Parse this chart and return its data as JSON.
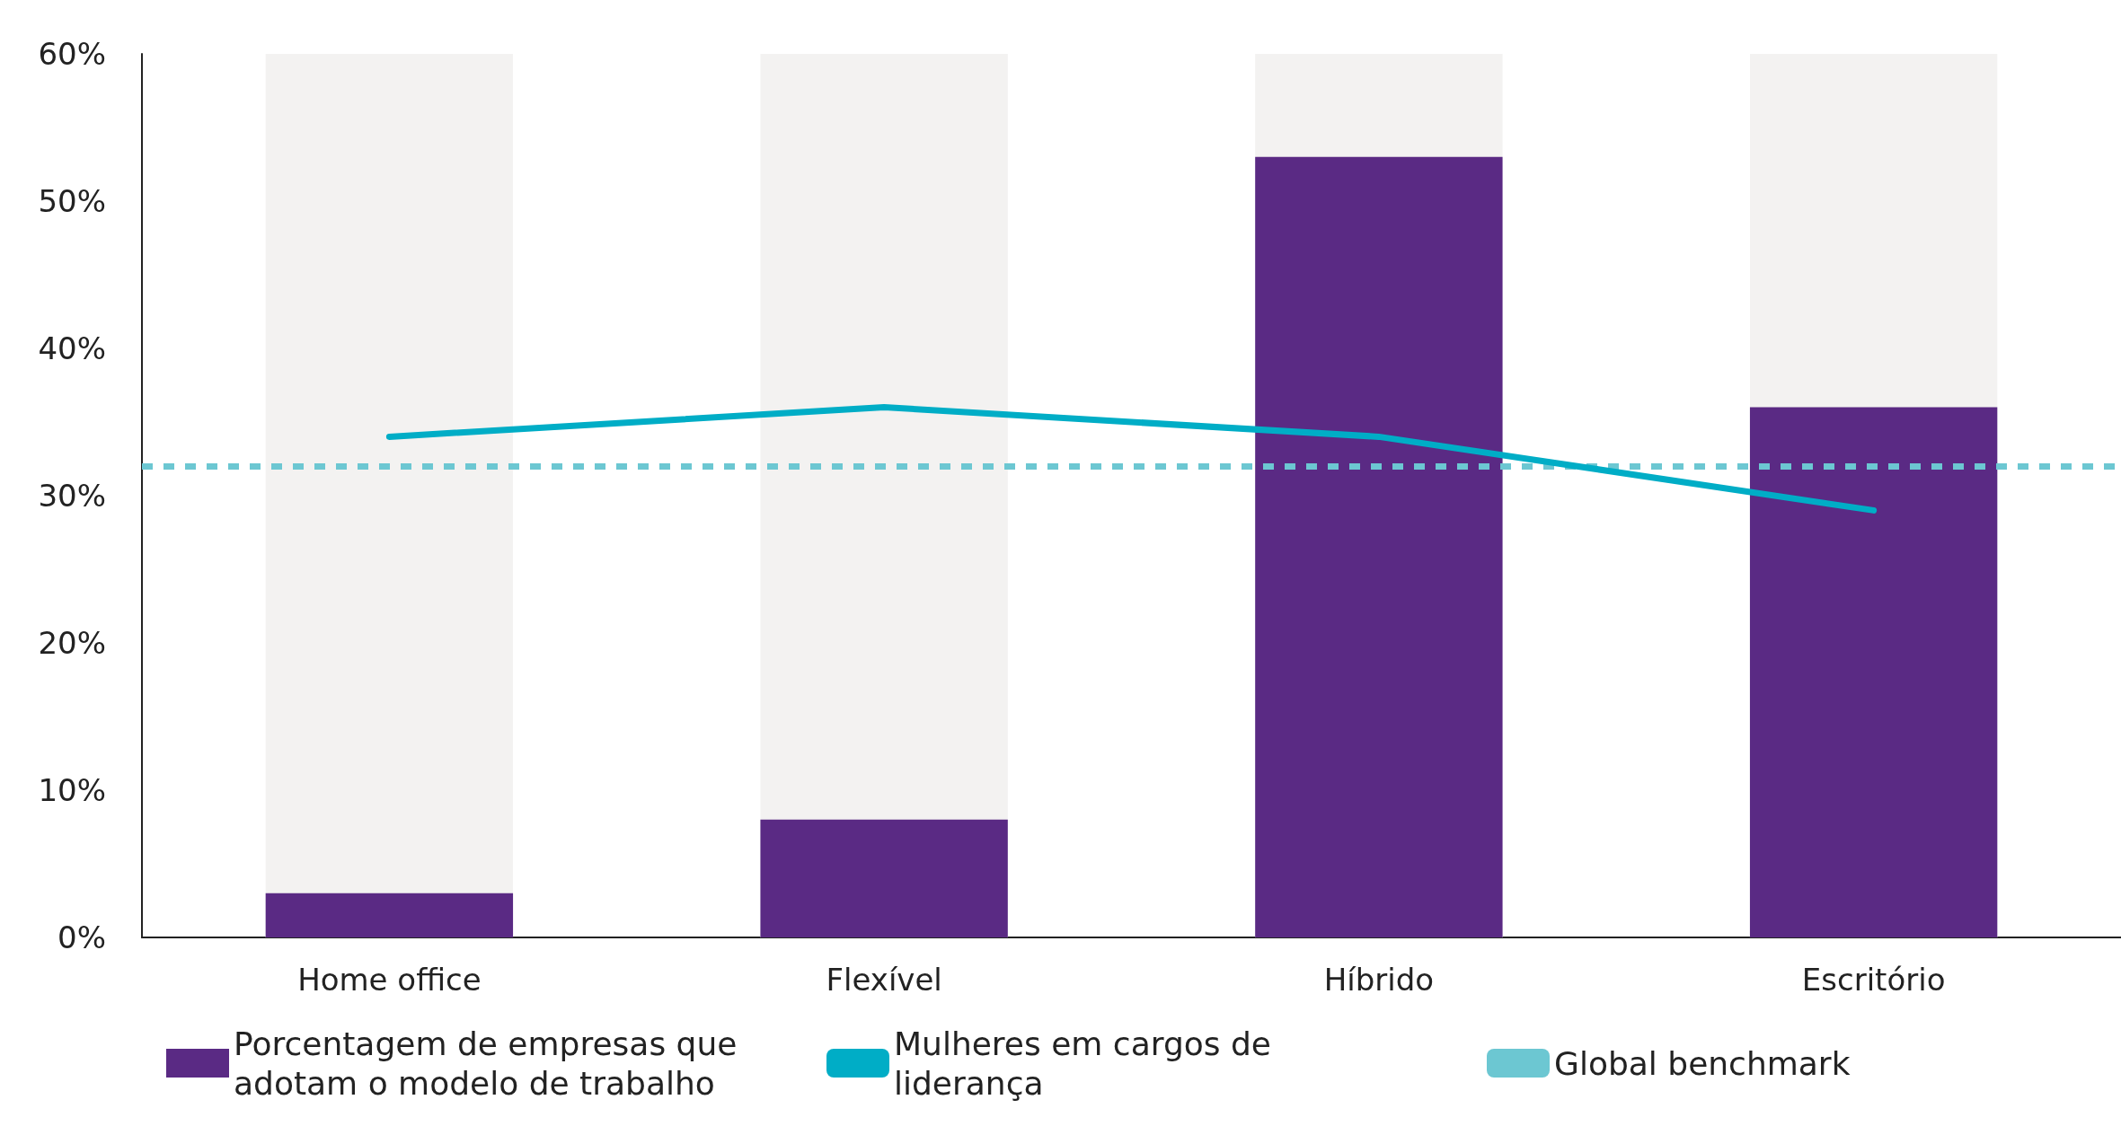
{
  "chart_data": {
    "type": "bar",
    "categories": [
      "Home office",
      "Flexível",
      "Híbrido",
      "Escritório"
    ],
    "series": [
      {
        "name": "Porcentagem de empresas que adotam o modelo de trabalho",
        "color": "#5a2a84",
        "values": [
          3,
          8,
          53,
          36
        ]
      },
      {
        "name": "Mulheres em cargos de liderança",
        "type": "line",
        "color": "#00adc6",
        "values": [
          34,
          36,
          34,
          29
        ]
      }
    ],
    "ref_lines": [
      {
        "axis": "y",
        "value": 32,
        "label": "Global benchmark",
        "color": "#6cc7d2",
        "line_style": "dashed"
      }
    ],
    "ylim": [
      0,
      60
    ],
    "yticks": [
      {
        "value": 0,
        "label": "0%"
      },
      {
        "value": 10,
        "label": "10%"
      },
      {
        "value": 20,
        "label": "20%"
      },
      {
        "value": 30,
        "label": "30%"
      },
      {
        "value": 40,
        "label": "40%"
      },
      {
        "value": 50,
        "label": "50%"
      },
      {
        "value": 60,
        "label": "60%"
      }
    ],
    "grid": false,
    "legend": "bottom",
    "marker": "none"
  }
}
